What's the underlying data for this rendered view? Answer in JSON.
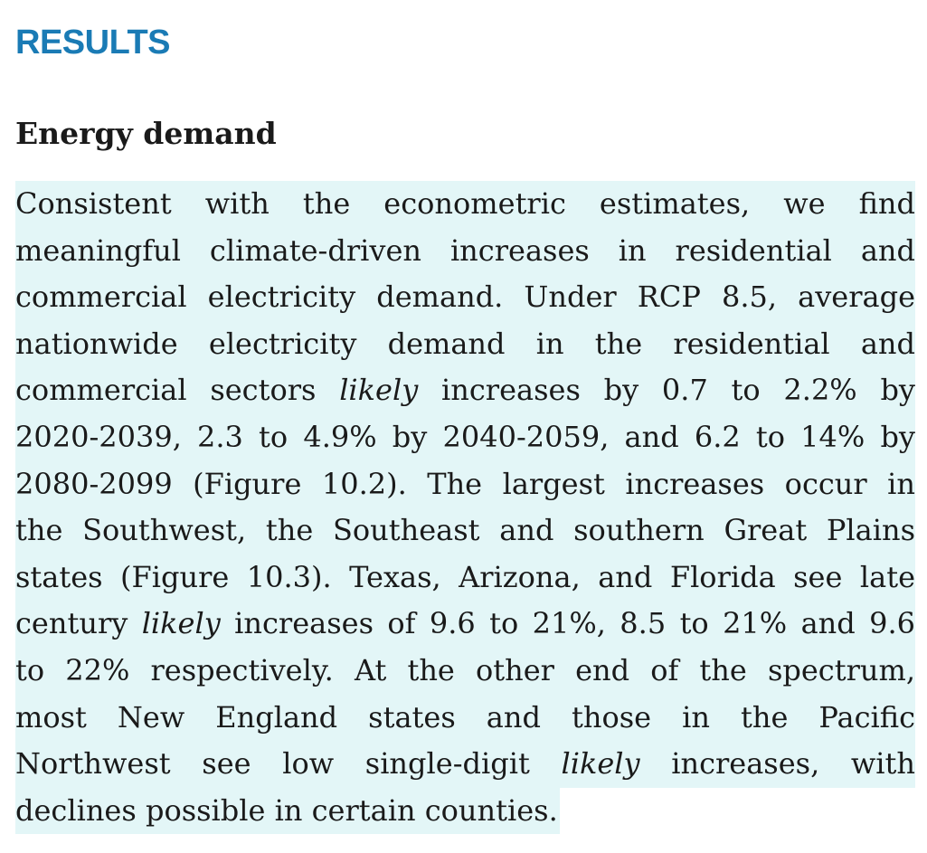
{
  "section": {
    "title": "RESULTS"
  },
  "subsection": {
    "title": "Energy demand"
  },
  "paragraph": {
    "highlight_color": "#e3f6f7",
    "lines": [
      {
        "a": "Consistent with the econometric estimates, we find"
      },
      {
        "a": "meaningful climate-driven increases in residential and"
      },
      {
        "a": "commercial electricity demand. Under RCP 8.5, average"
      },
      {
        "a": "nationwide electricity demand in the residential and"
      },
      {
        "a": "commercial sectors ",
        "em": "likely",
        "b": " increases by 0.7 to 2.2% by"
      },
      {
        "a": "2020-2039, 2.3 to 4.9% by 2040-2059, and 6.2 to 14% by"
      },
      {
        "a": "2080-2099 (Figure 10.2).  The largest increases occur in"
      },
      {
        "a": "the Southwest, the Southeast and southern Great Plains"
      },
      {
        "a": "states (Figure 10.3). Texas, Arizona, and Florida see late"
      },
      {
        "a": "century ",
        "em": "likely",
        "b": " increases of 9.6 to 21%, 8.5 to 21% and 9.6"
      },
      {
        "a": "to 22% respectively. At the other end of the spectrum,"
      },
      {
        "a": "most New England states and those in the Pacific"
      },
      {
        "a": "Northwest see low single-digit ",
        "em": "likely",
        "b": " increases, with"
      },
      {
        "a": "declines possible in certain counties."
      }
    ]
  }
}
